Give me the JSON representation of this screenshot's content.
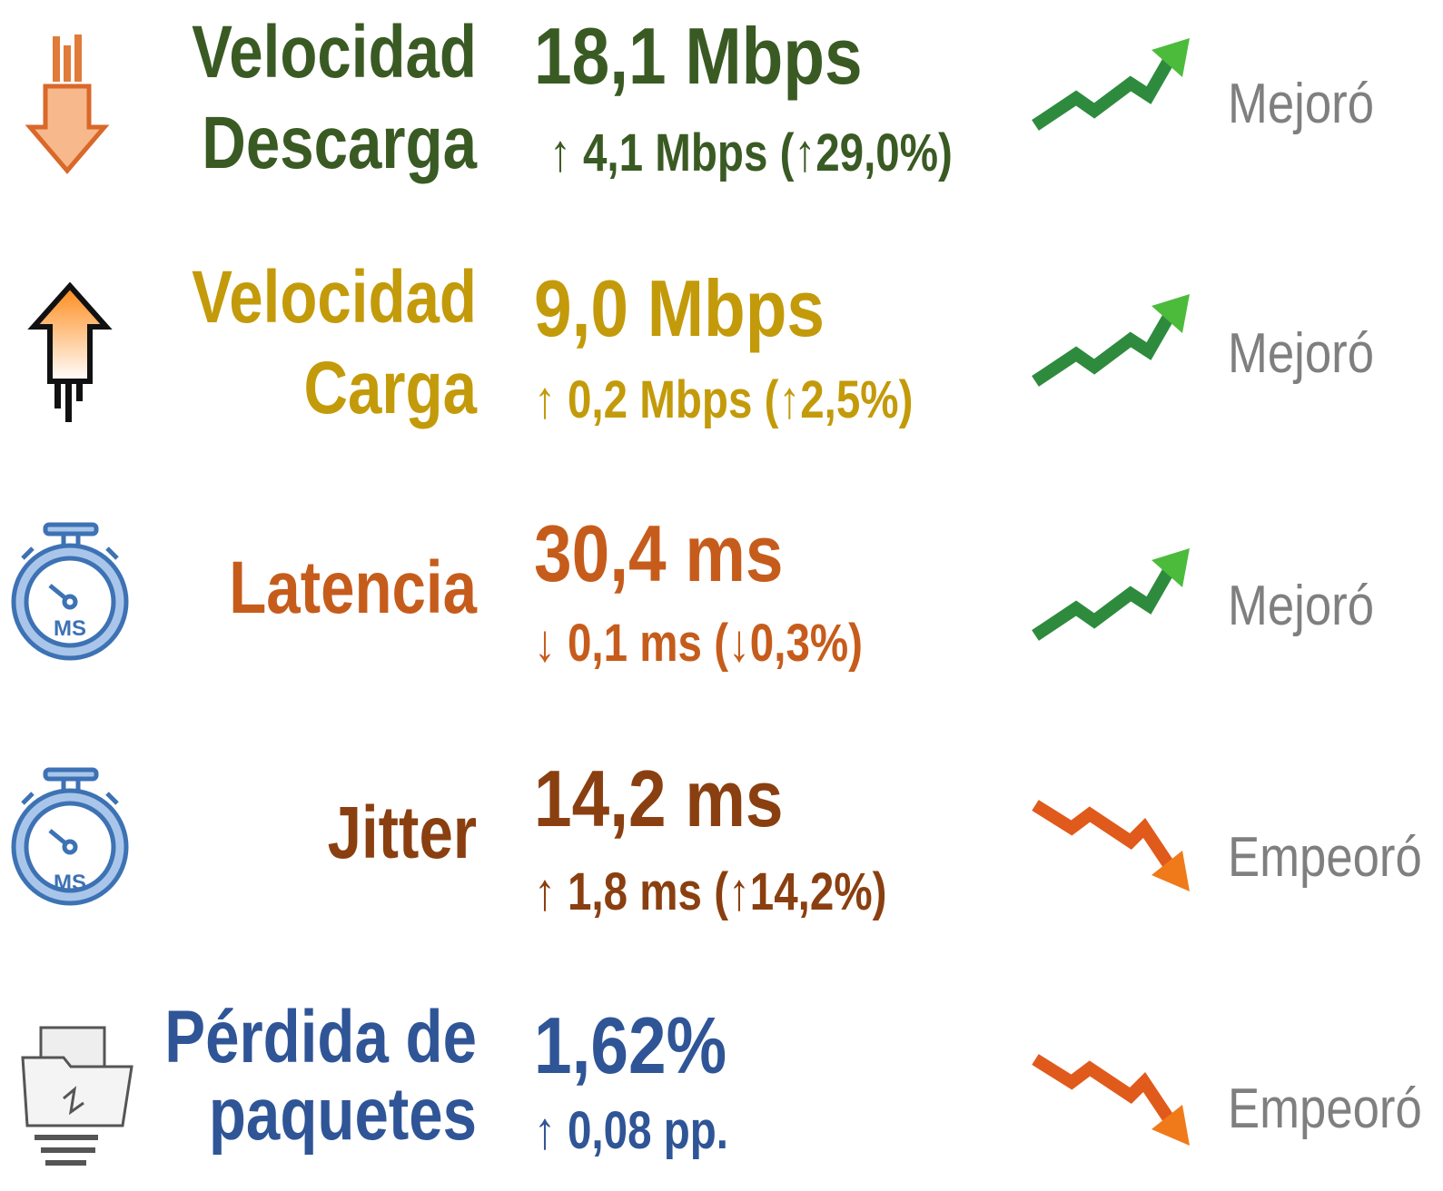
{
  "rows": [
    {
      "label": [
        "Velocidad",
        "Descarga"
      ],
      "value": "18,1 Mbps",
      "change": "↑ 4,1 Mbps (↑29,0%)",
      "status": "Mejoró"
    },
    {
      "label": [
        "Velocidad",
        "Carga"
      ],
      "value": "9,0 Mbps",
      "change": "↑ 0,2 Mbps (↑2,5%)",
      "status": "Mejoró"
    },
    {
      "label": [
        "Latencia"
      ],
      "value": "30,4 ms",
      "change": "↓ 0,1 ms (↓0,3%)",
      "status": "Mejoró",
      "icon_label": "MS"
    },
    {
      "label": [
        "Jitter"
      ],
      "value": "14,2 ms",
      "change": "↑ 1,8 ms (↑14,2%)",
      "status": "Empeoró",
      "icon_label": "MS"
    },
    {
      "label": [
        "Pérdida de",
        "paquetes"
      ],
      "value": "1,62%",
      "change": "↑ 0,08 pp.",
      "status": "Empeoró"
    }
  ]
}
